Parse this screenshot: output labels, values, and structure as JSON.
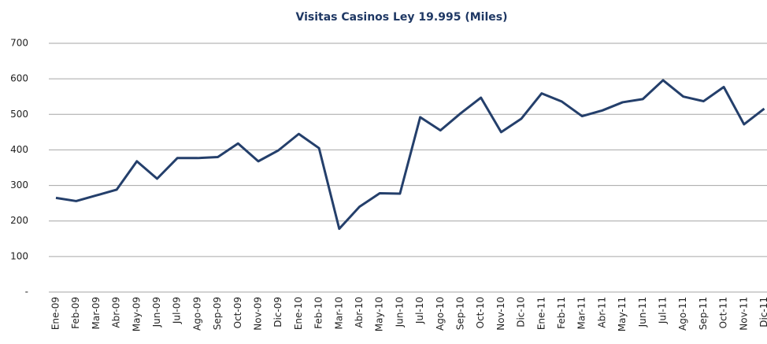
{
  "chart_data": {
    "type": "line",
    "title": "Visitas Casinos Ley 19.995 (Miles)",
    "categories": [
      "Ene-09",
      "Feb-09",
      "Mar-09",
      "Abr-09",
      "May-09",
      "Jun-09",
      "Jul-09",
      "Ago-09",
      "Sep-09",
      "Oct-09",
      "Nov-09",
      "Dic-09",
      "Ene-10",
      "Feb-10",
      "Mar-10",
      "Abr-10",
      "May-10",
      "Jun-10",
      "Jul-10",
      "Ago-10",
      "Sep-10",
      "Oct-10",
      "Nov-10",
      "Dic-10",
      "Ene-11",
      "Feb-11",
      "Mar-11",
      "Abr-11",
      "May-11",
      "Jun-11",
      "Jul-11",
      "Ago-11",
      "Sep-11",
      "Oct-11",
      "Nov-11",
      "Dic-11"
    ],
    "values": [
      265,
      256,
      272,
      288,
      368,
      319,
      377,
      377,
      380,
      418,
      368,
      399,
      445,
      405,
      178,
      240,
      278,
      277,
      492,
      455,
      503,
      547,
      450,
      488,
      559,
      536,
      495,
      511,
      534,
      543,
      596,
      550,
      537,
      577,
      472,
      516
    ],
    "color": "#243f6b",
    "ylim": [
      0,
      700
    ],
    "yticks": [
      {
        "value": 0,
        "label": "-"
      },
      100,
      200,
      300,
      400,
      500,
      600,
      700
    ],
    "grid": true
  }
}
